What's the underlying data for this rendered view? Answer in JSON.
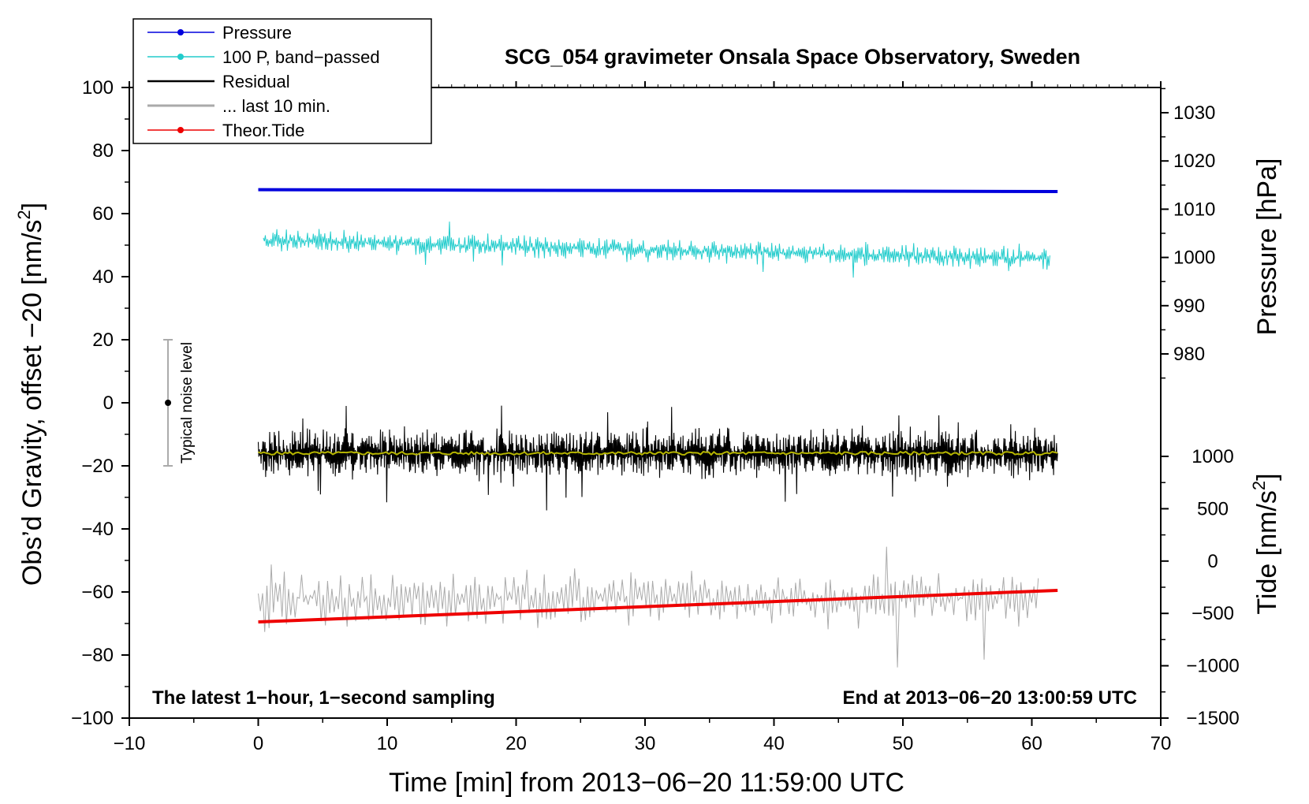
{
  "chart_data": {
    "type": "line",
    "title": "SCG_054 gravimeter Onsala Space Observatory, Sweden",
    "xlabel": "Time [min] from 2013−06−20 11:59:00 UTC",
    "ylabel": "Obs’d Gravity, offset −20 [nm/s",
    "ylabel_sup": "2",
    "ylabel_end": "]",
    "y2label_pressure": "Pressure [hPa]",
    "y2label_tide": "Tide [nm/s",
    "y2label_tide_sup": "2",
    "y2label_tide_end": "]",
    "xlim": [
      -10,
      70
    ],
    "ylim": [
      -100,
      100
    ],
    "x_ticks": [
      {
        "v": -10,
        "label": "−10"
      },
      {
        "v": 0,
        "label": "0"
      },
      {
        "v": 10,
        "label": "10"
      },
      {
        "v": 20,
        "label": "20"
      },
      {
        "v": 30,
        "label": "30"
      },
      {
        "v": 40,
        "label": "40"
      },
      {
        "v": 50,
        "label": "50"
      },
      {
        "v": 60,
        "label": "60"
      },
      {
        "v": 70,
        "label": "70"
      }
    ],
    "y_ticks": [
      {
        "v": 100,
        "label": "100"
      },
      {
        "v": 80,
        "label": "80"
      },
      {
        "v": 60,
        "label": "60"
      },
      {
        "v": 40,
        "label": "40"
      },
      {
        "v": 20,
        "label": "20"
      },
      {
        "v": 0,
        "label": "0"
      },
      {
        "v": -20,
        "label": "−20"
      },
      {
        "v": -40,
        "label": "−40"
      },
      {
        "v": -60,
        "label": "−60"
      },
      {
        "v": -80,
        "label": "−80"
      },
      {
        "v": -100,
        "label": "−100"
      }
    ],
    "pressure_axis": {
      "ticks": [
        {
          "v": 1030,
          "label": "1030"
        },
        {
          "v": 1020,
          "label": "1020"
        },
        {
          "v": 1010,
          "label": "1010"
        },
        {
          "v": 1000,
          "label": "1000"
        },
        {
          "v": 990,
          "label": "990"
        },
        {
          "v": 980,
          "label": "980"
        }
      ],
      "map": {
        "hpa_a": 1030,
        "g_a": 92,
        "hpa_b": 980,
        "g_b": 15.5
      }
    },
    "tide_axis": {
      "ticks": [
        {
          "v": 1000,
          "label": "1000"
        },
        {
          "v": 500,
          "label": "500"
        },
        {
          "v": 0,
          "label": "0"
        },
        {
          "v": -500,
          "label": "−500"
        },
        {
          "v": -1000,
          "label": "−1000"
        },
        {
          "v": -1500,
          "label": "−1500"
        }
      ],
      "map": {
        "tide_a": 1000,
        "g_a": -17,
        "tide_b": -1500,
        "g_b": -100
      }
    },
    "series": [
      {
        "name": "Pressure",
        "color": "#0000dd",
        "kind": "flat",
        "x_start": 0,
        "x_end": 62,
        "y_start": 67.6,
        "y_end": 67.0,
        "noise": 0,
        "seed": 1
      },
      {
        "name": "100 P, band−passed",
        "color": "#22cccc",
        "kind": "noisy",
        "x_start": 0.4,
        "x_end": 61.4,
        "y_start": 51.5,
        "y_end": 45.5,
        "noise": 2.2,
        "seed": 7,
        "n": 820
      },
      {
        "name": "Residual",
        "color": "#000000",
        "kind": "noisy",
        "x_start": 0,
        "x_end": 62,
        "y_start": -16,
        "y_end": -16,
        "noise": 4.5,
        "seed": 13,
        "n": 1400
      },
      {
        "name": "... last 10 min.",
        "color": "#aaaaaa",
        "kind": "noisy",
        "x_start": 0,
        "x_end": 60.5,
        "y_start": -62,
        "y_end": -62,
        "noise": 5.2,
        "seed": 21,
        "n": 360
      },
      {
        "name": "Theor.Tide",
        "color": "#ee0000",
        "kind": "flat",
        "x_start": 0,
        "x_end": 62,
        "y_start": -69.5,
        "y_end": -59.5,
        "noise": 0,
        "seed": 3
      }
    ],
    "smoothed_residual": {
      "color": "#b5b500",
      "x_start": 0,
      "x_end": 62,
      "y": -16,
      "noise": 0.5,
      "seed": 5,
      "n": 300
    },
    "legend": {
      "placement": "top-left, outside plot",
      "items": [
        {
          "label": "Pressure",
          "color": "#0000dd",
          "marker": true
        },
        {
          "label": "100 P, band−passed",
          "color": "#22cccc",
          "marker": true
        },
        {
          "label": "Residual",
          "color": "#000000",
          "marker": false
        },
        {
          "label": "... last 10 min.",
          "color": "#aaaaaa",
          "marker": false
        },
        {
          "label": "Theor.Tide",
          "color": "#ee0000",
          "marker": true
        }
      ]
    },
    "noise_bar": {
      "x": -7,
      "y_low": -20,
      "y_high": 20,
      "y_center": 0,
      "label": "Typical noise level"
    },
    "annotations": {
      "bottom_left": "The latest 1−hour, 1−second sampling",
      "bottom_right": "End at 2013−06−20 13:00:59 UTC"
    }
  }
}
